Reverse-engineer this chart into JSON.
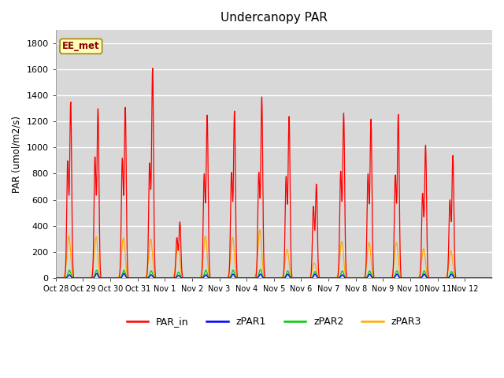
{
  "title": "Undercanopy PAR",
  "ylabel": "PAR (umol/m2/s)",
  "annotation": "EE_met",
  "plot_background": "#dcdcdc",
  "grid_color": "#c8c8c8",
  "ylim": [
    0,
    1900
  ],
  "yticks": [
    0,
    200,
    400,
    600,
    800,
    1000,
    1200,
    1400,
    1600,
    1800
  ],
  "xtick_labels": [
    "Oct 28",
    "Oct 29",
    "Oct 30",
    "Oct 31",
    "Nov 1",
    "Nov 2",
    "Nov 3",
    "Nov 4",
    "Nov 5",
    "Nov 6",
    "Nov 7",
    "Nov 8",
    "Nov 9",
    "Nov 10",
    "Nov 11",
    "Nov 12"
  ],
  "legend_items": [
    {
      "label": "PAR_in",
      "color": "#ff0000"
    },
    {
      "label": "zPAR1",
      "color": "#0000ff"
    },
    {
      "label": "zPAR2",
      "color": "#00cc00"
    },
    {
      "label": "zPAR3",
      "color": "#ffaa00"
    }
  ],
  "series_colors": {
    "PAR_in": "#ff0000",
    "zPAR1": "#0000ff",
    "zPAR2": "#00cc00",
    "zPAR3": "#ffaa00"
  },
  "days": 16,
  "points_per_day": 96,
  "PAR_in_peaks": [
    1350,
    1300,
    1310,
    1610,
    430,
    1250,
    1280,
    1390,
    1240,
    720,
    1265,
    1220,
    1255,
    1020,
    940,
    0
  ],
  "zPAR1_peaks": [
    25,
    35,
    35,
    25,
    20,
    25,
    30,
    30,
    30,
    30,
    25,
    30,
    30,
    30,
    30,
    0
  ],
  "zPAR2_peaks": [
    60,
    60,
    60,
    55,
    45,
    60,
    60,
    65,
    55,
    50,
    55,
    55,
    55,
    55,
    50,
    0
  ],
  "zPAR3_peaks": [
    260,
    245,
    240,
    235,
    210,
    250,
    245,
    285,
    165,
    80,
    215,
    210,
    210,
    170,
    160,
    0
  ],
  "PAR_in_peaks2": [
    900,
    930,
    920,
    880,
    310,
    800,
    810,
    810,
    780,
    550,
    820,
    800,
    790,
    650,
    600,
    0
  ],
  "zPAR3_peaks2": [
    120,
    130,
    125,
    120,
    100,
    130,
    125,
    155,
    100,
    60,
    120,
    115,
    115,
    100,
    90,
    0
  ]
}
